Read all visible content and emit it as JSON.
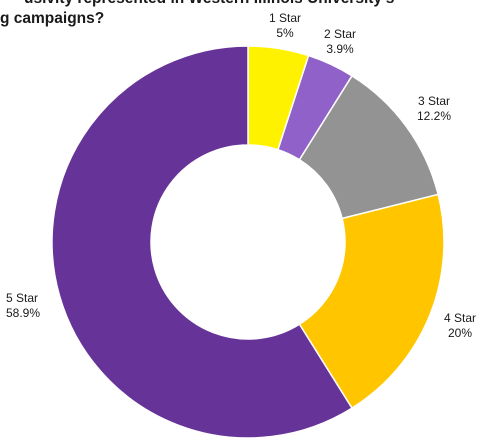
{
  "title": {
    "line1": "usivity represented in Western Illinois University's",
    "line2": "g campaigns?"
  },
  "chart_data": {
    "type": "pie",
    "donut": true,
    "categories": [
      "1 Star",
      "2 Star",
      "3 Star",
      "4 Star",
      "5 Star"
    ],
    "values": [
      5,
      3.9,
      12.2,
      20,
      58.9
    ],
    "value_labels": [
      "5%",
      "3.9%",
      "12.2%",
      "20%",
      "58.9%"
    ],
    "colors": [
      "#fff200",
      "#9061c9",
      "#939393",
      "#ffc600",
      "#663399"
    ],
    "start_angle": "top (12 o'clock)",
    "direction": "clockwise",
    "legend": "none",
    "labels_position": "outside"
  }
}
